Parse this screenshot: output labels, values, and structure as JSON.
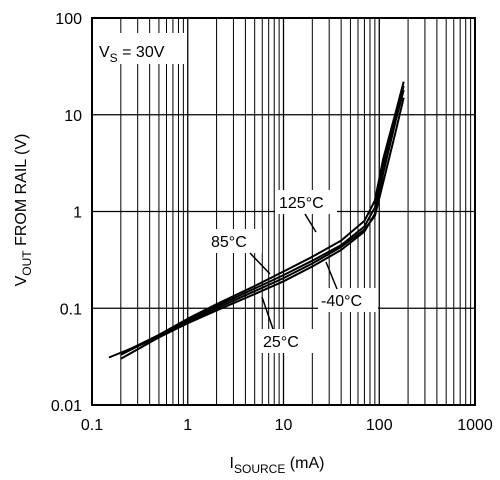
{
  "chart_data": {
    "type": "line",
    "xscale": "log",
    "yscale": "log",
    "xlim": [
      0.1,
      1000
    ],
    "ylim": [
      0.01,
      100
    ],
    "grid": true,
    "xlabel": {
      "main": "I",
      "sub": "SOURCE",
      "unit": " (mA)"
    },
    "ylabel": {
      "main": "V",
      "sub": "OUT",
      "rest": " FROM RAIL (V)"
    },
    "x_ticks": [
      "0.1",
      "1",
      "10",
      "100",
      "1000"
    ],
    "y_ticks": [
      "0.01",
      "0.1",
      "1",
      "10",
      "100"
    ],
    "condition": {
      "main": "V",
      "sub": "S",
      "rest": " = 30V"
    },
    "series": [
      {
        "name": "125°C",
        "x": [
          0.2,
          0.5,
          1,
          2,
          5,
          10,
          20,
          40,
          70,
          90,
          110,
          150,
          180
        ],
        "y": [
          0.034,
          0.053,
          0.078,
          0.11,
          0.17,
          0.24,
          0.34,
          0.5,
          0.8,
          1.3,
          3.5,
          11,
          22
        ]
      },
      {
        "name": "85°C",
        "x": [
          0.2,
          0.5,
          1,
          2,
          5,
          10,
          20,
          40,
          70,
          90,
          110,
          150,
          180
        ],
        "y": [
          0.033,
          0.052,
          0.075,
          0.105,
          0.16,
          0.22,
          0.31,
          0.45,
          0.7,
          1.1,
          3.0,
          10,
          20
        ]
      },
      {
        "name": "25°C",
        "x": [
          0.15,
          0.5,
          1,
          2,
          5,
          10,
          20,
          40,
          70,
          90,
          110,
          150,
          180
        ],
        "y": [
          0.031,
          0.05,
          0.07,
          0.095,
          0.14,
          0.19,
          0.27,
          0.4,
          0.62,
          0.95,
          2.5,
          9,
          18
        ]
      },
      {
        "name": "-40°C",
        "x": [
          0.2,
          0.5,
          1,
          2,
          5,
          10,
          20,
          40,
          70,
          90,
          110,
          150,
          180
        ],
        "y": [
          0.03,
          0.05,
          0.072,
          0.1,
          0.15,
          0.205,
          0.29,
          0.43,
          0.65,
          0.9,
          2.0,
          7,
          15
        ]
      }
    ],
    "annotations": [
      {
        "text": "125°C",
        "series": "125°C",
        "at": [
          38,
          0.48
        ]
      },
      {
        "text": "85°C",
        "series": "85°C",
        "at": [
          7,
          0.19
        ]
      },
      {
        "text": "25°C",
        "series": "25°C",
        "at": [
          6,
          0.14
        ]
      },
      {
        "text": "-40°C",
        "series": "-40°C",
        "at": [
          34,
          0.4
        ]
      }
    ]
  }
}
